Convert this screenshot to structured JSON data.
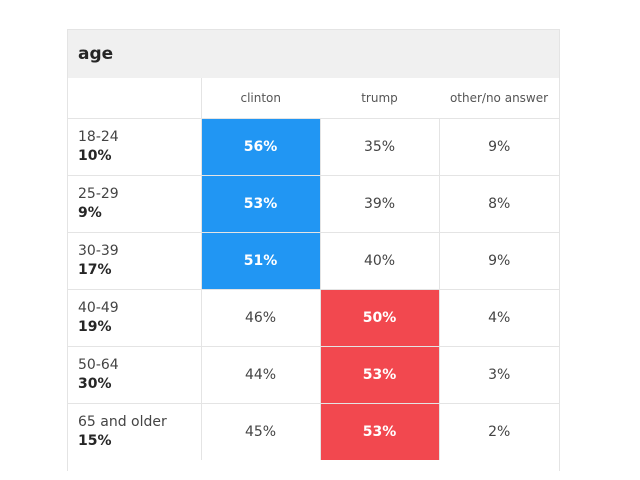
{
  "chart_data": {
    "type": "table",
    "title": "age",
    "columns": [
      "clinton",
      "trump",
      "other/no answer"
    ],
    "colors": {
      "clinton": "#2196f3",
      "trump": "#f2484f"
    },
    "rows": [
      {
        "group": "18-24",
        "share": "10%",
        "values": [
          "56%",
          "35%",
          "9%"
        ],
        "winner": "clinton"
      },
      {
        "group": "25-29",
        "share": "9%",
        "values": [
          "53%",
          "39%",
          "8%"
        ],
        "winner": "clinton"
      },
      {
        "group": "30-39",
        "share": "17%",
        "values": [
          "51%",
          "40%",
          "9%"
        ],
        "winner": "clinton"
      },
      {
        "group": "40-49",
        "share": "19%",
        "values": [
          "46%",
          "50%",
          "4%"
        ],
        "winner": "trump"
      },
      {
        "group": "50-64",
        "share": "30%",
        "values": [
          "44%",
          "53%",
          "3%"
        ],
        "winner": "trump"
      },
      {
        "group": "65 and older",
        "share": "15%",
        "values": [
          "45%",
          "53%",
          "2%"
        ],
        "winner": "trump"
      }
    ]
  }
}
